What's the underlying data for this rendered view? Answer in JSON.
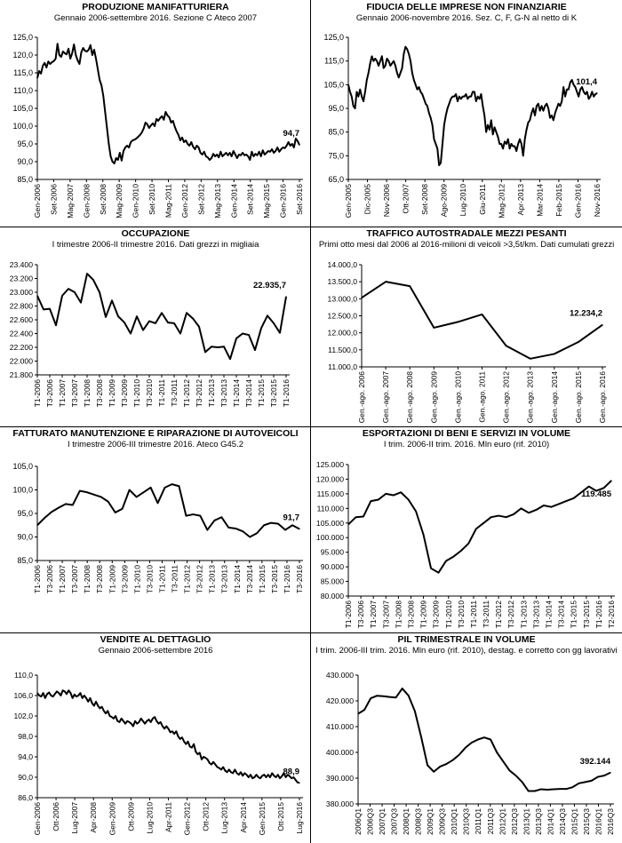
{
  "chart_data": [
    {
      "id": "p1",
      "type": "line",
      "title": "PRODUZIONE MANIFATTURIERA",
      "subtitle": "Gennaio 2006-settembre 2016. Sezione C Ateco 2007",
      "ylim": [
        85,
        125
      ],
      "yticks": [
        "85,0",
        "90,0",
        "95,0",
        "100,0",
        "105,0",
        "110,0",
        "115,0",
        "120,0",
        "125,0"
      ],
      "xticks": [
        "Gen-2006",
        "Set-2006",
        "Mag-2007",
        "Gen-2008",
        "Set-2008",
        "Mag-2009",
        "Gen-2010",
        "Set-2010",
        "Mag-2011",
        "Gen-2012",
        "Set-2012",
        "Mag-2013",
        "Gen-2014",
        "Set-2014",
        "Mag-2015",
        "Gen-2016",
        "Set-2016"
      ],
      "last_label": "94,7",
      "values": [
        113.5,
        115.5,
        114.8,
        117.0,
        117.8,
        116.5,
        118.2,
        117.5,
        118.0,
        118.3,
        119.0,
        123.2,
        120.0,
        119.5,
        121.0,
        120.5,
        120.2,
        121.8,
        119.0,
        120.5,
        123.0,
        120.0,
        118.5,
        117.5,
        120.8,
        122.0,
        121.2,
        121.0,
        121.5,
        122.8,
        120.0,
        121.5,
        119.0,
        116.0,
        113.0,
        111.5,
        108.5,
        104.0,
        99.5,
        95.0,
        91.5,
        90.0,
        89.5,
        91.0,
        90.5,
        92.5,
        90.3,
        93.0,
        94.0,
        94.5,
        94.0,
        95.5,
        96.0,
        96.2,
        96.5,
        97.0,
        97.5,
        98.2,
        99.3,
        101.0,
        100.5,
        99.5,
        100.2,
        100.8,
        100.0,
        102.0,
        101.5,
        102.3,
        102.8,
        101.8,
        104.0,
        103.0,
        102.5,
        101.0,
        101.5,
        99.8,
        98.5,
        97.5,
        96.0,
        96.8,
        95.5,
        96.0,
        95.0,
        94.5,
        95.5,
        94.2,
        93.5,
        94.5,
        94.0,
        92.5,
        92.0,
        92.8,
        91.5,
        91.2,
        90.5,
        91.0,
        92.2,
        91.5,
        92.0,
        91.2,
        92.8,
        91.5,
        92.0,
        92.5,
        91.8,
        92.5,
        91.5,
        93.0,
        92.0,
        91.0,
        92.0,
        91.8,
        92.5,
        91.8,
        92.0,
        91.5,
        90.5,
        92.8,
        91.5,
        92.2,
        91.8,
        92.8,
        91.5,
        93.2,
        92.0,
        92.5,
        93.0,
        92.8,
        93.5,
        92.5,
        93.0,
        94.0,
        92.8,
        93.5,
        94.0,
        93.8,
        94.5,
        95.5,
        94.5,
        95.0,
        94.0,
        96.5,
        95.8,
        94.7
      ]
    },
    {
      "id": "p2",
      "type": "line",
      "title": "FIDUCIA DELLE IMPRESE NON FINANZIARIE",
      "subtitle": "Gennaio 2006-novembre 2016. Sez. C, F, G-N al netto di K",
      "ylim": [
        65,
        125
      ],
      "yticks": [
        "65,0",
        "75,0",
        "85,0",
        "95,0",
        "105,0",
        "115,0",
        "125,0"
      ],
      "xticks": [
        "Gen-2005",
        "Dic-2005",
        "Nov-2006",
        "Ott-2007",
        "Set-2008",
        "Ago-2009",
        "Lug-2010",
        "Giu-2011",
        "Mag-2012",
        "Apr-2013",
        "Mar-2014",
        "Feb-2015",
        "Gen-2016",
        "Nov-2016"
      ],
      "last_label": "101,4",
      "values": [
        105,
        102,
        100,
        96,
        95,
        102,
        100,
        103,
        100,
        98,
        102,
        107,
        110,
        114,
        117,
        115,
        116,
        115,
        113,
        115,
        117,
        112,
        113,
        116,
        115,
        113,
        114,
        115,
        113,
        110,
        108,
        110,
        112,
        118,
        121,
        120,
        118,
        115,
        110,
        107,
        105,
        103,
        104,
        102,
        101,
        99,
        97,
        96,
        93,
        91,
        88,
        82,
        80,
        78,
        71,
        72,
        80,
        88,
        92,
        95,
        97,
        99,
        100,
        100,
        101,
        98,
        100,
        99,
        100,
        100,
        101,
        99,
        100,
        100,
        102,
        102,
        98,
        100,
        99,
        101,
        96,
        92,
        85,
        88,
        86,
        90,
        84,
        87,
        85,
        83,
        80,
        80,
        78,
        81,
        80,
        82,
        78,
        80,
        79,
        79,
        77,
        80,
        82,
        80,
        75,
        82,
        86,
        89,
        90,
        93,
        95,
        92,
        96,
        97,
        94,
        96,
        94,
        96,
        97,
        95,
        91,
        92,
        90,
        93,
        95,
        97,
        96,
        98,
        104,
        100,
        103,
        103,
        106,
        107,
        105,
        104,
        102,
        100,
        103,
        104,
        102,
        101,
        102,
        99,
        100,
        102,
        100,
        101,
        101.4
      ]
    },
    {
      "id": "p3",
      "type": "line",
      "title": "OCCUPAZIONE",
      "subtitle": "I trimestre 2006-II trimestre 2016. Dati grezzi in migliaia",
      "ylim": [
        21800,
        23400
      ],
      "yticks": [
        "21.800",
        "22.000",
        "22.200",
        "22.400",
        "22.600",
        "22.800",
        "23.000",
        "23.200",
        "23.400"
      ],
      "xticks": [
        "T1-2006",
        "T3-2006",
        "T1-2007",
        "T3-2007",
        "T1-2008",
        "T3-2008",
        "T1-2009",
        "T3-2009",
        "T1-2010",
        "T3-2010",
        "T1-2011",
        "T3-2011",
        "T1-2012",
        "T3-2012",
        "T1-2013",
        "T3-2013",
        "T1-2014",
        "T3-2014",
        "T1-2015",
        "T3-2015",
        "T1-2016"
      ],
      "last_label": "22.935,7",
      "values": [
        22950,
        22750,
        22760,
        22520,
        22950,
        23050,
        23000,
        22850,
        23270,
        23180,
        23000,
        22640,
        22880,
        22650,
        22560,
        22400,
        22650,
        22450,
        22580,
        22550,
        22700,
        22560,
        22550,
        22400,
        22700,
        22620,
        22500,
        22130,
        22210,
        22200,
        22210,
        22030,
        22330,
        22400,
        22380,
        22160,
        22480,
        22660,
        22550,
        22410,
        22935.7
      ]
    },
    {
      "id": "p4",
      "type": "line",
      "title": "TRAFFICO AUTOSTRADALE MEZZI PESANTI",
      "subtitle": "Primi otto mesi dal 2006 al 2016-milioni di veicoli >3,5t/km. Dati cumulati grezzi",
      "ylim": [
        11000,
        14000
      ],
      "yticks": [
        "11.000,0",
        "11.500,0",
        "12.000,0",
        "12.500,0",
        "13.000,0",
        "13.500,0",
        "14.000,0"
      ],
      "xticks": [
        "Gen.-ago. 2006",
        "Gen.-ago. 2007",
        "Gen.-ago. 2008",
        "Gen.-ago. 2009",
        "Gen.-ago. 2010",
        "Gen.-ago. 2011",
        "Gen.-ago. 2012",
        "Gen.-ago. 2013",
        "Gen.-ago. 2014",
        "Gen.-ago. 2015",
        "Gen.-ago. 2016"
      ],
      "last_label": "12.234,2",
      "values": [
        13030,
        13500,
        13370,
        12150,
        12320,
        12540,
        11620,
        11240,
        11380,
        11730,
        12234.2
      ]
    },
    {
      "id": "p5",
      "type": "line",
      "title": "FATTURATO MANUTENZIONE E RIPARAZIONE DI AUTOVEICOLI",
      "subtitle": "I trimestre 2006-III trimestre 2016. Ateco G45.2",
      "ylim": [
        85,
        105
      ],
      "yticks": [
        "85,0",
        "90,0",
        "95,0",
        "100,0",
        "105,0"
      ],
      "xticks": [
        "T1-2006",
        "T3-2006",
        "T1-2007",
        "T3-2007",
        "T1-2008",
        "T3-2008",
        "T1-2009",
        "T3-2009",
        "T1-2010",
        "T3-2010",
        "T1-2011",
        "T3-2011",
        "T1-2012",
        "T3-2012",
        "T1-2013",
        "T3-2013",
        "T1-2014",
        "T3-2014",
        "T1-2015",
        "T3-2015",
        "T1-2016",
        "T3-2016"
      ],
      "last_label": "91,7",
      "values": [
        92.5,
        94.0,
        95.3,
        96.2,
        97.0,
        96.8,
        99.8,
        99.5,
        99.0,
        98.5,
        97.5,
        95.2,
        96.0,
        100.0,
        98.5,
        99.5,
        100.5,
        97.2,
        100.5,
        101.2,
        100.8,
        94.5,
        94.8,
        94.5,
        91.5,
        93.5,
        94.2,
        92.0,
        91.8,
        91.2,
        90.0,
        90.8,
        92.5,
        93.0,
        92.8,
        91.5,
        92.5,
        91.7
      ]
    },
    {
      "id": "p6",
      "type": "line",
      "title": "ESPORTAZIONI DI BENI E SERVIZI IN VOLUME",
      "subtitle": "I trim. 2006-II trim. 2016. Mln euro (rif. 2010)",
      "ylim": [
        80000,
        125000
      ],
      "yticks": [
        "80.000",
        "85.000",
        "90.000",
        "95.000",
        "100.000",
        "105.000",
        "110.000",
        "115.000",
        "120.000",
        "125.000"
      ],
      "xticks": [
        "T1-2006",
        "T3-2006",
        "T1-2007",
        "T3-2007",
        "T1-2008",
        "T3-2008",
        "T1-2009",
        "T3-2009",
        "T1-2010",
        "T3-2010",
        "T1-2011",
        "T3-2011",
        "T1-2012",
        "T3-2012",
        "T1-2013",
        "T3-2013",
        "T1-2014",
        "T3-2014",
        "T1-2015",
        "T3-2015",
        "T1-2016",
        "T2-2016"
      ],
      "last_label": "119.485",
      "values": [
        104500,
        107000,
        107200,
        112500,
        113000,
        115000,
        114500,
        115500,
        113000,
        109000,
        101000,
        89500,
        88000,
        92000,
        93500,
        95500,
        98000,
        103000,
        105000,
        107000,
        107500,
        107000,
        108000,
        110000,
        108500,
        109500,
        111000,
        110500,
        111500,
        112500,
        113500,
        115500,
        117500,
        116000,
        117000,
        119485
      ]
    },
    {
      "id": "p7",
      "type": "line",
      "title": "VENDITE AL DETTAGLIO",
      "subtitle": "Gennaio 2006-settembre 2016",
      "ylim": [
        86,
        110
      ],
      "yticks": [
        "86,0",
        "90,0",
        "94,0",
        "98,0",
        "102,0",
        "106,0",
        "110,0"
      ],
      "xticks": [
        "Gen-2006",
        "Ott-2006",
        "Lug-2007",
        "Apr-2008",
        "Gen-2009",
        "Ott-2009",
        "Lug-2010",
        "Apr-2011",
        "Gen-2012",
        "Ott-2012",
        "Lug-2013",
        "Apr-2014",
        "Gen-2015",
        "Ott-2015",
        "Lug-2016"
      ],
      "last_label": "88,9",
      "values": [
        106.5,
        106.0,
        105.8,
        106.5,
        105.5,
        106.3,
        106.6,
        106.0,
        105.8,
        106.3,
        106.8,
        106.5,
        106.0,
        107.0,
        106.8,
        106.3,
        107.0,
        106.5,
        105.5,
        106.2,
        105.8,
        106.0,
        106.5,
        105.5,
        106.0,
        105.5,
        104.8,
        105.5,
        104.5,
        104.0,
        104.8,
        104.0,
        103.5,
        103.8,
        103.0,
        102.5,
        103.0,
        102.0,
        101.8,
        101.5,
        102.0,
        101.0,
        100.8,
        101.5,
        101.0,
        100.5,
        101.0,
        100.8,
        100.5,
        100.0,
        101.0,
        100.5,
        100.8,
        101.5,
        101.0,
        100.5,
        101.0,
        101.3,
        100.8,
        101.5,
        101.8,
        101.0,
        100.5,
        100.8,
        100.0,
        99.5,
        100.0,
        99.5,
        98.8,
        99.0,
        98.5,
        99.0,
        98.0,
        97.5,
        97.8,
        97.0,
        96.5,
        97.0,
        96.0,
        95.8,
        96.5,
        95.0,
        94.5,
        94.8,
        93.5,
        94.0,
        93.8,
        93.5,
        92.8,
        92.5,
        93.0,
        92.5,
        92.0,
        91.8,
        91.5,
        92.0,
        91.3,
        91.0,
        91.5,
        91.0,
        90.8,
        91.5,
        90.8,
        90.5,
        91.0,
        90.3,
        90.8,
        90.5,
        90.0,
        90.5,
        89.8,
        90.0,
        90.5,
        90.0,
        89.8,
        90.3,
        90.5,
        90.0,
        90.5,
        90.0,
        90.8,
        90.3,
        90.0,
        90.5,
        89.8,
        90.2,
        90.8,
        90.0,
        90.5,
        90.2,
        89.8,
        90.0,
        89.5,
        89.0,
        88.9
      ]
    },
    {
      "id": "p8",
      "type": "line",
      "title": "PIL TRIMESTRALE IN VOLUME",
      "subtitle": "I trim. 2006-III trim. 2016. Mln euro (rif. 2010), destag. e corretto con gg lavorativi",
      "ylim": [
        380000,
        430000
      ],
      "yticks": [
        "380.000",
        "390.000",
        "400.000",
        "410.000",
        "420.000",
        "430.000"
      ],
      "xticks": [
        "2006Q1",
        "2006Q3",
        "2007Q1",
        "2007Q3",
        "2008Q1",
        "2008Q3",
        "2009Q1",
        "2009Q3",
        "2010Q1",
        "2010Q3",
        "2011Q1",
        "2011Q3",
        "2012Q1",
        "2012Q3",
        "2013Q1",
        "2013Q3",
        "2014Q1",
        "2014Q3",
        "2015Q1",
        "2015Q3",
        "2016Q1",
        "2016Q3"
      ],
      "last_label": "392.144",
      "values": [
        415000,
        416500,
        421000,
        422000,
        421800,
        421500,
        421300,
        424800,
        422000,
        416000,
        406000,
        395000,
        392500,
        394500,
        395500,
        397000,
        399000,
        401800,
        403800,
        405000,
        405800,
        405000,
        400000,
        396500,
        393000,
        391000,
        388500,
        385000,
        385000,
        385700,
        385500,
        385700,
        385800,
        385800,
        386500,
        388000,
        388500,
        389000,
        390500,
        391000,
        392144
      ]
    }
  ]
}
